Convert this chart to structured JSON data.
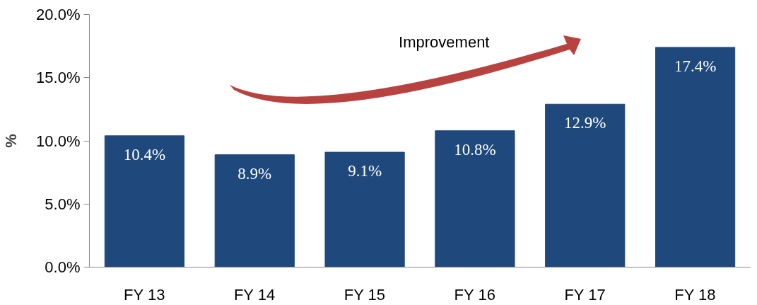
{
  "chart_data": {
    "type": "bar",
    "ylabel": "%",
    "categories": [
      "FY 13",
      "FY 14",
      "FY 15",
      "FY 16",
      "FY 17",
      "FY 18"
    ],
    "values": [
      10.4,
      8.9,
      9.1,
      10.8,
      12.9,
      17.4
    ],
    "value_labels": [
      "10.4%",
      "8.9%",
      "9.1%",
      "10.8%",
      "12.9%",
      "17.4%"
    ],
    "color": "#1f497d",
    "ylim": [
      0,
      20
    ],
    "yticks": [
      {
        "value": 0,
        "label": "0.0%"
      },
      {
        "value": 5,
        "label": "5.0%"
      },
      {
        "value": 10,
        "label": "10.0%"
      },
      {
        "value": 15,
        "label": "15.0%"
      },
      {
        "value": 20,
        "label": "20.0%"
      }
    ],
    "grid": false,
    "annotations": [
      "Improvement"
    ]
  }
}
